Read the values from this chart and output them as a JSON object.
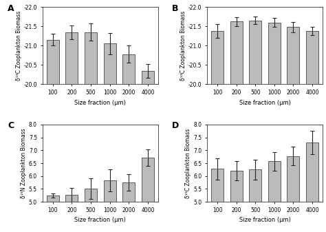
{
  "categories": [
    "100",
    "200",
    "500",
    "1000",
    "2000",
    "4000"
  ],
  "panel_A": {
    "label": "A",
    "values": [
      -21.15,
      -21.35,
      -21.35,
      -21.05,
      -20.78,
      -20.35
    ],
    "errors": [
      0.15,
      0.18,
      0.22,
      0.28,
      0.22,
      0.18
    ],
    "ylim": [
      -22.0,
      -20.0
    ],
    "yticks": [
      -22.0,
      -21.5,
      -21.0,
      -20.5,
      -20.0
    ],
    "ylabel": "δ¹³C Zooplankton Biomass",
    "invert_yaxis": true,
    "bar_bottom": -20.0
  },
  "panel_B": {
    "label": "B",
    "values": [
      -21.38,
      -21.62,
      -21.65,
      -21.6,
      -21.48,
      -21.38
    ],
    "errors": [
      0.18,
      0.12,
      0.1,
      0.12,
      0.13,
      0.1
    ],
    "ylim": [
      -22.0,
      -20.0
    ],
    "yticks": [
      -22.0,
      -21.5,
      -21.0,
      -20.5,
      -20.0
    ],
    "ylabel": "δ¹³C Zooplankton Biomass",
    "invert_yaxis": true,
    "bar_bottom": -20.0
  },
  "panel_C": {
    "label": "C",
    "values": [
      5.25,
      5.27,
      5.52,
      5.83,
      5.75,
      6.72
    ],
    "errors": [
      0.08,
      0.28,
      0.4,
      0.42,
      0.32,
      0.32
    ],
    "ylim": [
      5.0,
      8.0
    ],
    "yticks": [
      5.0,
      5.5,
      6.0,
      6.5,
      7.0,
      7.5,
      8.0
    ],
    "ylabel": "δ¹⁵N Zooplankton Biomass",
    "invert_yaxis": false,
    "bar_bottom": 5.0
  },
  "panel_D": {
    "label": "D",
    "values": [
      6.28,
      6.2,
      6.25,
      6.57,
      6.78,
      7.3
    ],
    "errors": [
      0.42,
      0.38,
      0.38,
      0.35,
      0.35,
      0.45
    ],
    "ylim": [
      5.0,
      8.0
    ],
    "yticks": [
      5.0,
      5.5,
      6.0,
      6.5,
      7.0,
      7.5,
      8.0
    ],
    "ylabel": "δ¹⁵C Zooplankton Biomass",
    "invert_yaxis": false,
    "bar_bottom": 5.0
  },
  "bar_color": "#bbbbbb",
  "bar_edgecolor": "#444444",
  "xlabel": "Size fraction (μm)"
}
